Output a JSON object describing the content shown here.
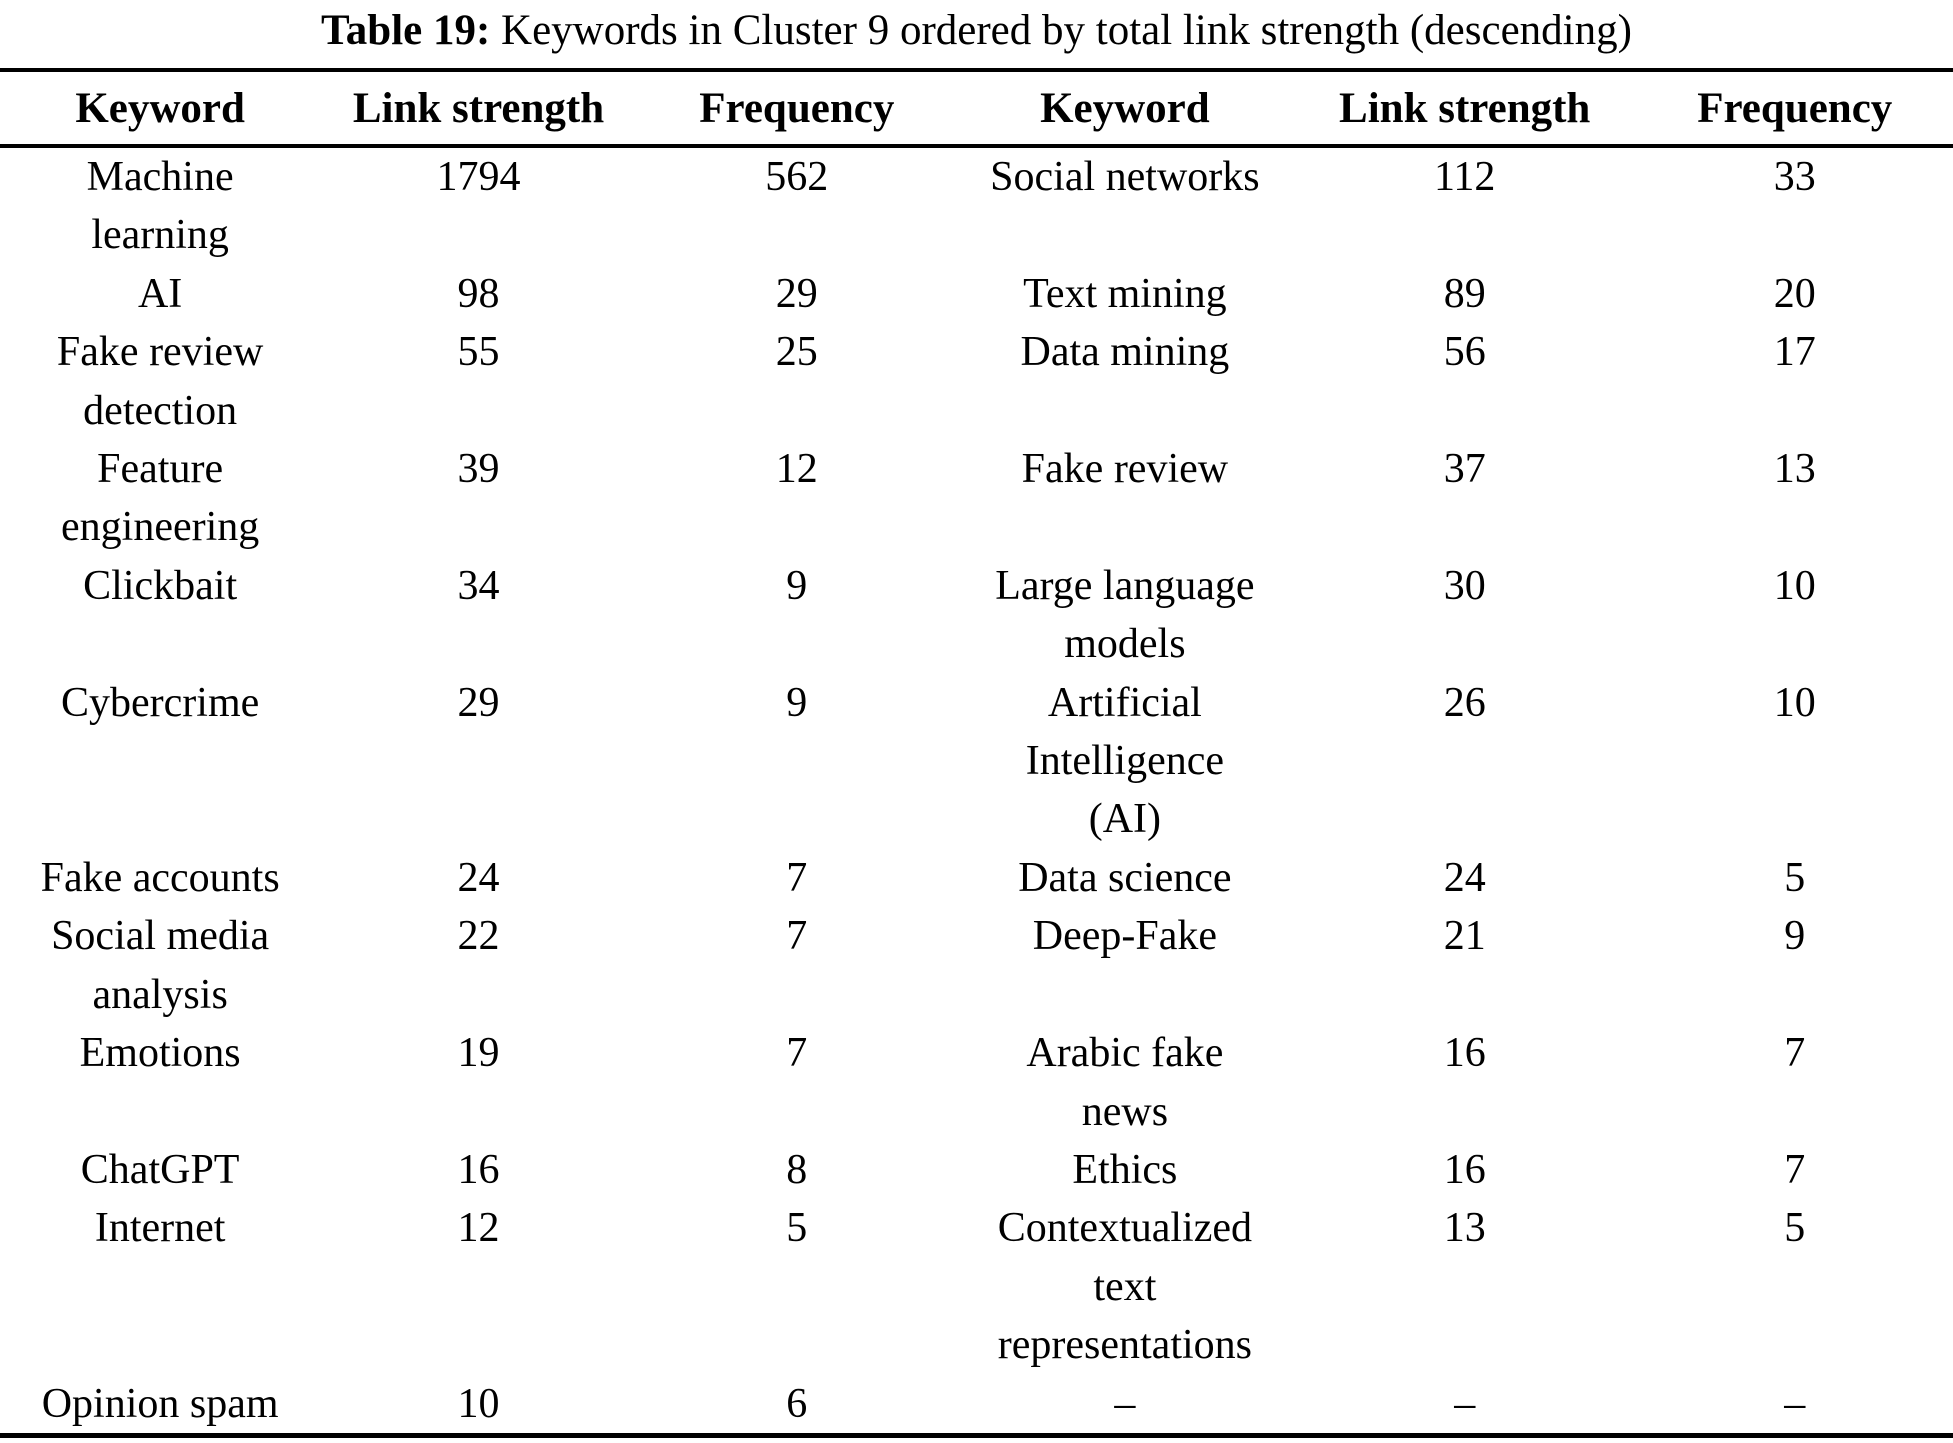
{
  "caption": {
    "label": "Table 19:",
    "text": "Keywords in Cluster 9 ordered by total link strength (descending)"
  },
  "table": {
    "headers": [
      "Keyword",
      "Link strength",
      "Frequency",
      "Keyword",
      "Link strength",
      "Frequency"
    ],
    "rows": [
      [
        "Machine\nlearning",
        "1794",
        "562",
        "Social networks",
        "112",
        "33"
      ],
      [
        "AI",
        "98",
        "29",
        "Text mining",
        "89",
        "20"
      ],
      [
        "Fake review\ndetection",
        "55",
        "25",
        "Data mining",
        "56",
        "17"
      ],
      [
        "Feature\nengineering",
        "39",
        "12",
        "Fake review",
        "37",
        "13"
      ],
      [
        "Clickbait",
        "34",
        "9",
        "Large language\nmodels",
        "30",
        "10"
      ],
      [
        "Cybercrime",
        "29",
        "9",
        "Artificial\nIntelligence\n(AI)",
        "26",
        "10"
      ],
      [
        "Fake accounts",
        "24",
        "7",
        "Data science",
        "24",
        "5"
      ],
      [
        "Social media\nanalysis",
        "22",
        "7",
        "Deep-Fake",
        "21",
        "9"
      ],
      [
        "Emotions",
        "19",
        "7",
        "Arabic fake\nnews",
        "16",
        "7"
      ],
      [
        "ChatGPT",
        "16",
        "8",
        "Ethics",
        "16",
        "7"
      ],
      [
        "Internet",
        "12",
        "5",
        "Contextualized\ntext\nrepresentations",
        "13",
        "5"
      ],
      [
        "Opinion spam",
        "10",
        "6",
        "–",
        "–",
        "–"
      ]
    ],
    "column_kinds": [
      "keyword",
      "link-strength",
      "frequency",
      "keyword",
      "link-strength",
      "frequency"
    ]
  }
}
